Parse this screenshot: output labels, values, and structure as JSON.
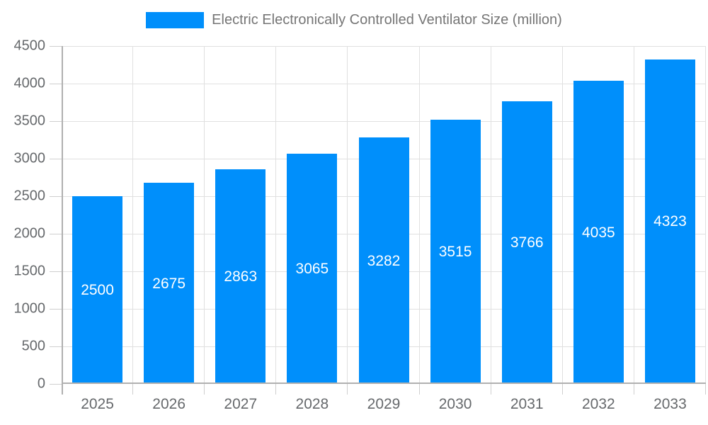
{
  "legend": {
    "label": "Electric Electronically Controlled Ventilator Size (million)"
  },
  "chart_data": {
    "type": "bar",
    "title": "Electric Electronically Controlled Ventilator Size (million)",
    "categories": [
      "2025",
      "2026",
      "2027",
      "2028",
      "2029",
      "2030",
      "2031",
      "2032",
      "2033"
    ],
    "values": [
      2500,
      2675,
      2863,
      3065,
      3282,
      3515,
      3766,
      4035,
      4323
    ],
    "series_name": "Electric Electronically Controlled Ventilator Size (million)",
    "xlabel": "",
    "ylabel": "",
    "ylim": [
      0,
      4500
    ],
    "ytick_step": 500,
    "yticks": [
      0,
      500,
      1000,
      1500,
      2000,
      2500,
      3000,
      3500,
      4000,
      4500
    ],
    "grid": true,
    "legend_position": "top-center",
    "bar_labels_inside": true
  },
  "colors": {
    "bar": "#008ffb",
    "bar_label": "#ffffff",
    "grid": "#e0e0e0",
    "axis_line": "#b0b0b0",
    "tick": "#cfcfcf",
    "axis_text": "#66696c",
    "legend_text": "#757575"
  }
}
